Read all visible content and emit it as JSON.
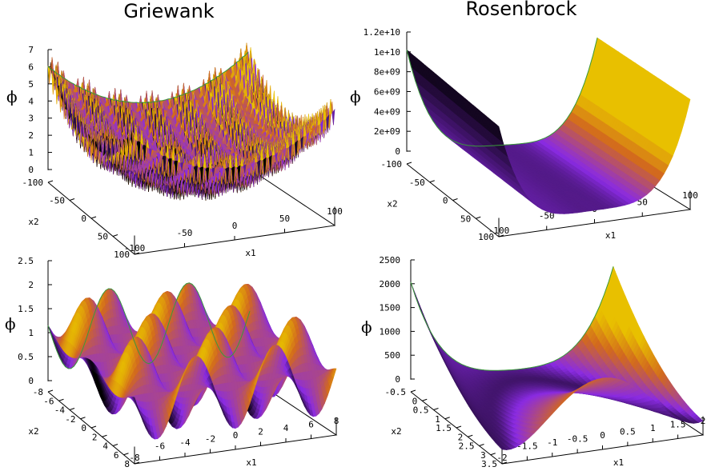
{
  "titles": {
    "left": "Griewank",
    "right": "Rosenbrock"
  },
  "colors": {
    "low": "#000000",
    "mid": "#8a2be2",
    "high": "#d2691e",
    "top": "#e8c000",
    "edge": "#3a9a3a"
  },
  "chart_data": [
    {
      "type": "surface",
      "function": "griewank",
      "title": "Griewank",
      "xlabel": "x1",
      "ylabel": "x2",
      "zlabel": "ϕ",
      "xlim": [
        -100,
        100
      ],
      "ylim": [
        -100,
        100
      ],
      "zlim": [
        0,
        7
      ],
      "xticks": [
        "-100",
        "-50",
        "0",
        "50",
        "100"
      ],
      "yticks": [
        "-100",
        "-50",
        "0",
        "50",
        "100"
      ],
      "zticks": [
        "0",
        "1",
        "2",
        "3",
        "4",
        "5",
        "6",
        "7"
      ]
    },
    {
      "type": "surface",
      "function": "rosenbrock",
      "title": "Rosenbrock",
      "xlabel": "x1",
      "ylabel": "x2",
      "zlabel": "ϕ",
      "xlim": [
        -100,
        100
      ],
      "ylim": [
        -100,
        100
      ],
      "zlim": [
        0,
        12000000000.0
      ],
      "xticks": [
        "-100",
        "-50",
        "0",
        "50",
        "100"
      ],
      "yticks": [
        "-100",
        "-50",
        "0",
        "50",
        "100"
      ],
      "zticks": [
        "0",
        "2e+09",
        "4e+09",
        "6e+09",
        "8e+09",
        "1e+10",
        "1.2e+10"
      ]
    },
    {
      "type": "surface",
      "function": "griewank",
      "xlabel": "x1",
      "ylabel": "x2",
      "zlabel": "ϕ",
      "xlim": [
        -8,
        8
      ],
      "ylim": [
        -8,
        8
      ],
      "zlim": [
        0,
        2.5
      ],
      "xticks": [
        "-8",
        "-6",
        "-4",
        "-2",
        "0",
        "2",
        "4",
        "6",
        "8"
      ],
      "yticks": [
        "-8",
        "-6",
        "-4",
        "-2",
        "0",
        "2",
        "4",
        "6",
        "8"
      ],
      "zticks": [
        "0",
        "0.5",
        "1",
        "1.5",
        "2",
        "2.5"
      ]
    },
    {
      "type": "surface",
      "function": "rosenbrock",
      "xlabel": "x1",
      "ylabel": "x2",
      "zlabel": "ϕ",
      "xlim": [
        -2,
        2
      ],
      "ylim": [
        -0.5,
        3.5
      ],
      "zlim": [
        0,
        2500
      ],
      "xticks": [
        "-2",
        "-1.5",
        "-1",
        "-0.5",
        "0",
        "0.5",
        "1",
        "1.5",
        "2"
      ],
      "yticks": [
        "-0.5",
        "0",
        "0.5",
        "1",
        "1.5",
        "2",
        "2.5",
        "3",
        "3.5"
      ],
      "zticks": [
        "0",
        "500",
        "1000",
        "1500",
        "2000",
        "2500"
      ]
    }
  ]
}
